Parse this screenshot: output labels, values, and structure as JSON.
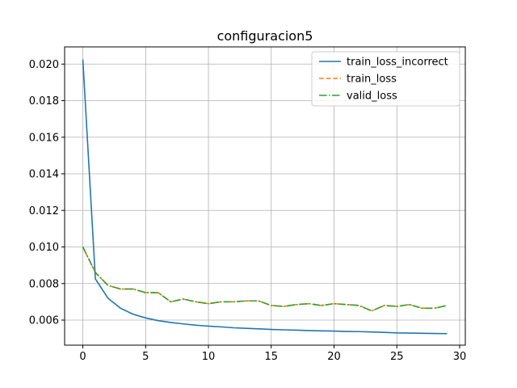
{
  "chart_data": {
    "type": "line",
    "title": "configuracion5",
    "xlabel": "",
    "ylabel": "",
    "xlim": [
      -1.45,
      30.45
    ],
    "ylim": [
      0.00463,
      0.02094
    ],
    "xticks": [
      0,
      5,
      10,
      15,
      20,
      25,
      30
    ],
    "yticks": [
      0.006,
      0.008,
      0.01,
      0.012,
      0.014,
      0.016,
      0.018,
      0.02
    ],
    "ytick_labels": [
      "0.006",
      "0.008",
      "0.010",
      "0.012",
      "0.014",
      "0.016",
      "0.018",
      "0.020"
    ],
    "grid": true,
    "legend_position": "top-right",
    "x": [
      0,
      1,
      2,
      3,
      4,
      5,
      6,
      7,
      8,
      9,
      10,
      11,
      12,
      13,
      14,
      15,
      16,
      17,
      18,
      19,
      20,
      21,
      22,
      23,
      24,
      25,
      26,
      27,
      28,
      29
    ],
    "series": [
      {
        "name": "train_loss_incorrect",
        "color": "#1f77b4",
        "style": "solid",
        "values": [
          0.02025,
          0.00825,
          0.0072,
          0.00665,
          0.00632,
          0.00612,
          0.00597,
          0.00587,
          0.00579,
          0.00572,
          0.00567,
          0.00563,
          0.00558,
          0.00555,
          0.00552,
          0.00549,
          0.00547,
          0.00545,
          0.00543,
          0.00541,
          0.0054,
          0.00538,
          0.00537,
          0.00535,
          0.00533,
          0.0053,
          0.00529,
          0.00528,
          0.00527,
          0.00526
        ]
      },
      {
        "name": "train_loss",
        "color": "#ff7f0e",
        "style": "dashed",
        "values": [
          0.01,
          0.0086,
          0.0079,
          0.0077,
          0.0077,
          0.0075,
          0.0075,
          0.007,
          0.00715,
          0.007,
          0.0069,
          0.007,
          0.007,
          0.00705,
          0.00705,
          0.0068,
          0.00675,
          0.00685,
          0.0069,
          0.0068,
          0.0069,
          0.00685,
          0.0068,
          0.0065,
          0.0068,
          0.00675,
          0.00685,
          0.00665,
          0.00665,
          0.0068
        ]
      },
      {
        "name": "valid_loss",
        "color": "#2ca02c",
        "style": "dashdot",
        "values": [
          0.01,
          0.0086,
          0.0079,
          0.0077,
          0.0077,
          0.0075,
          0.0075,
          0.007,
          0.00715,
          0.007,
          0.0069,
          0.007,
          0.007,
          0.00705,
          0.00705,
          0.0068,
          0.00675,
          0.00685,
          0.0069,
          0.0068,
          0.0069,
          0.00685,
          0.0068,
          0.0065,
          0.0068,
          0.00675,
          0.00685,
          0.00665,
          0.00665,
          0.0068
        ]
      }
    ]
  }
}
